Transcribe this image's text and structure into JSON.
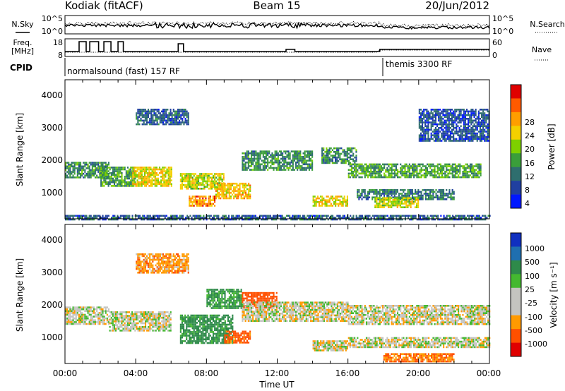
{
  "header": {
    "station": "Kodiak (fitACF)",
    "beam": "Beam 15",
    "date": "20/Jun/2012"
  },
  "summary_panels": {
    "nsky_label": "N.Sky",
    "nsearch_label": "N.Search",
    "noise_ticks": [
      "10^5",
      "10^0"
    ],
    "freq_label_line1": "Freq.",
    "freq_label_line2": "[MHz]",
    "freq_ticks": [
      "18",
      "8"
    ],
    "nave_label": "Nave",
    "nave_ticks": [
      "60",
      "0"
    ],
    "cpid_label": "CPID",
    "cpid_segments": [
      {
        "name": "normalsound (fast) 157 RF",
        "start": "00:00",
        "end": "18:00"
      },
      {
        "name": "themis 3300 RF",
        "start": "18:00",
        "end": "24:00"
      }
    ]
  },
  "x_axis": {
    "label": "Time UT",
    "ticks": [
      "00:00",
      "04:00",
      "08:00",
      "12:00",
      "16:00",
      "20:00",
      "00:00"
    ]
  },
  "power_colorbar": {
    "label": "Power [dB]",
    "ticks": [
      "28",
      "24",
      "20",
      "16",
      "12",
      "8",
      "4"
    ],
    "colors": [
      "#e00000",
      "#ff5a00",
      "#ff9e00",
      "#f4d000",
      "#7ed000",
      "#3a9e3a",
      "#2e6e6e",
      "#2040a0",
      "#0018ff"
    ]
  },
  "velocity_colorbar": {
    "label": "Velocity [m s⁻¹]",
    "ticks": [
      "1000",
      "500",
      "100",
      "25",
      "-25",
      "-100",
      "-500",
      "-1000"
    ],
    "colors": [
      "#1030c0",
      "#1f6fb0",
      "#2e8a4a",
      "#44b830",
      "#c4c4c0",
      "#c4c4c0",
      "#ff9a00",
      "#ff5000",
      "#e00000"
    ]
  },
  "chart_data": [
    {
      "type": "heatmap",
      "panel": "power",
      "ylabel": "Slant Range [km]",
      "xlabel": "",
      "yticks": [
        "1000",
        "2000",
        "3000",
        "4000"
      ],
      "x_range_hours": [
        0,
        24
      ],
      "y_range_km": [
        180,
        4500
      ],
      "colorscale_label": "Power [dB]",
      "bands": [
        {
          "t0": 0.0,
          "t1": 2.5,
          "r0": 1450,
          "r1": 1950,
          "level_db": 10
        },
        {
          "t0": 2.0,
          "t1": 4.0,
          "r0": 1200,
          "r1": 1800,
          "level_db": 12
        },
        {
          "t0": 3.8,
          "t1": 6.0,
          "r0": 1200,
          "r1": 1800,
          "level_db": 20
        },
        {
          "t0": 6.5,
          "t1": 9.0,
          "r0": 1100,
          "r1": 1600,
          "level_db": 18
        },
        {
          "t0": 7.0,
          "t1": 8.5,
          "r0": 600,
          "r1": 900,
          "level_db": 24
        },
        {
          "t0": 8.5,
          "t1": 10.5,
          "r0": 800,
          "r1": 1300,
          "level_db": 22
        },
        {
          "t0": 10.0,
          "t1": 14.0,
          "r0": 1700,
          "r1": 2300,
          "level_db": 10
        },
        {
          "t0": 14.0,
          "t1": 16.0,
          "r0": 600,
          "r1": 900,
          "level_db": 20
        },
        {
          "t0": 14.5,
          "t1": 16.5,
          "r0": 1900,
          "r1": 2400,
          "level_db": 10
        },
        {
          "t0": 16.0,
          "t1": 23.5,
          "r0": 1500,
          "r1": 1900,
          "level_db": 12
        },
        {
          "t0": 16.5,
          "t1": 22.0,
          "r0": 800,
          "r1": 1100,
          "level_db": 8
        },
        {
          "t0": 17.5,
          "t1": 20.0,
          "r0": 550,
          "r1": 850,
          "level_db": 18
        },
        {
          "t0": 4.0,
          "t1": 7.0,
          "r0": 3100,
          "r1": 3600,
          "level_db": 6
        },
        {
          "t0": 20.0,
          "t1": 24.0,
          "r0": 2600,
          "r1": 3600,
          "level_db": 5
        },
        {
          "t0": 0.0,
          "t1": 24.0,
          "r0": 180,
          "r1": 300,
          "level_db": 6
        }
      ]
    },
    {
      "type": "heatmap",
      "panel": "velocity",
      "ylabel": "Slant Range [km]",
      "xlabel": "Time UT",
      "yticks": [
        "1000",
        "2000",
        "3000",
        "4000"
      ],
      "x_range_hours": [
        0,
        24
      ],
      "y_range_km": [
        180,
        4500
      ],
      "colorscale_label": "Velocity [m s⁻¹]",
      "bands": [
        {
          "t0": 0.0,
          "t1": 2.5,
          "r0": 1400,
          "r1": 1950,
          "vel": 0
        },
        {
          "t0": 2.5,
          "t1": 6.0,
          "r0": 1200,
          "r1": 1800,
          "vel": 0
        },
        {
          "t0": 6.5,
          "t1": 9.5,
          "r0": 800,
          "r1": 1700,
          "vel": 150
        },
        {
          "t0": 8.0,
          "t1": 10.0,
          "r0": 1900,
          "r1": 2500,
          "vel": 120
        },
        {
          "t0": 9.0,
          "t1": 10.5,
          "r0": 850,
          "r1": 1200,
          "vel": -200
        },
        {
          "t0": 10.0,
          "t1": 12.0,
          "r0": 1900,
          "r1": 2400,
          "vel": -300
        },
        {
          "t0": 10.0,
          "t1": 16.0,
          "r0": 1500,
          "r1": 2100,
          "vel": 0
        },
        {
          "t0": 14.0,
          "t1": 16.0,
          "r0": 600,
          "r1": 900,
          "vel": 0
        },
        {
          "t0": 16.0,
          "t1": 24.0,
          "r0": 1400,
          "r1": 2000,
          "vel": 0
        },
        {
          "t0": 16.0,
          "t1": 24.0,
          "r0": 700,
          "r1": 1000,
          "vel": 0
        },
        {
          "t0": 18.0,
          "t1": 22.0,
          "r0": 250,
          "r1": 500,
          "vel": -150
        },
        {
          "t0": 4.0,
          "t1": 7.0,
          "r0": 3000,
          "r1": 3600,
          "vel": -100
        }
      ]
    }
  ]
}
